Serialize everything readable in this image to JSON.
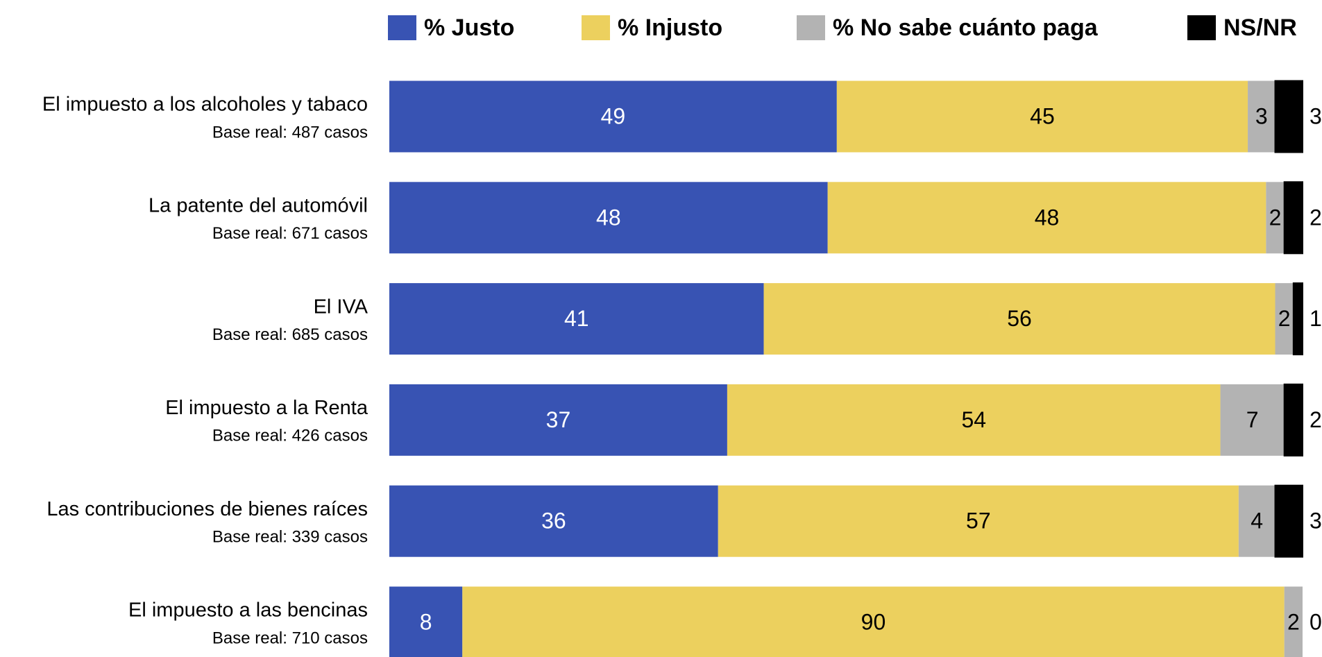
{
  "chart_data": {
    "type": "stacked-bar-horizontal",
    "categories": [
      "El impuesto a los alcoholes y tabaco",
      "La patente del automóvil",
      "El IVA",
      "El impuesto a la Renta",
      "Las contribuciones de bienes raíces",
      "El impuesto a las bencinas"
    ],
    "category_notes": [
      "Base real: 487 casos",
      "Base real: 671 casos",
      "Base real: 685 casos",
      "Base real: 426 casos",
      "Base real: 339 casos",
      "Base real: 710 casos"
    ],
    "series": [
      {
        "name": "% Justo",
        "color": "#3853b3",
        "values": [
          49,
          48,
          41,
          37,
          36,
          8
        ]
      },
      {
        "name": "% Injusto",
        "color": "#ecd05e",
        "values": [
          45,
          48,
          56,
          54,
          57,
          90
        ]
      },
      {
        "name": "% No sabe cuánto paga",
        "color": "#b3b3b3",
        "values": [
          3,
          2,
          2,
          7,
          4,
          2
        ]
      },
      {
        "name": "NS/NR",
        "color": "#000000",
        "values": [
          3,
          2,
          1,
          2,
          3,
          0
        ]
      }
    ],
    "xlim": [
      0,
      100
    ],
    "legend": "top"
  }
}
